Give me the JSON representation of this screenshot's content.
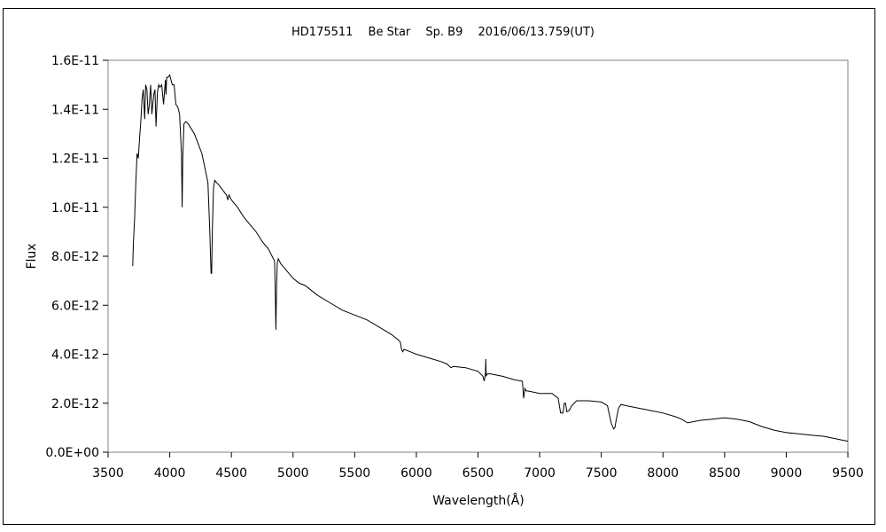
{
  "chart_data": {
    "type": "line",
    "title": "HD175511　 Be Star　 Sp. B9　 2016/06/13.759(UT)",
    "xlabel": "Wavelength(Å)",
    "ylabel": "Flux",
    "xlim": [
      3500,
      9500
    ],
    "ylim": [
      0,
      1.6e-11
    ],
    "x_ticks": [
      3500,
      4000,
      4500,
      5000,
      5500,
      6000,
      6500,
      7000,
      7500,
      8000,
      8500,
      9000,
      9500
    ],
    "x_tick_labels": [
      "3500",
      "4000",
      "4500",
      "5000",
      "5500",
      "6000",
      "6500",
      "7000",
      "7500",
      "8000",
      "8500",
      "9000",
      "9500"
    ],
    "y_ticks": [
      0,
      2e-12,
      4e-12,
      6e-12,
      8e-12,
      1e-11,
      1.2e-11,
      1.4e-11,
      1.6e-11
    ],
    "y_tick_labels": [
      "0.0E+00",
      "2.0E-12",
      "4.0E-12",
      "6.0E-12",
      "8.0E-12",
      "1.0E-11",
      "1.2E-11",
      "1.4E-11",
      "1.6E-11"
    ],
    "grid": false,
    "line_color": "#000000",
    "series": [
      {
        "x": [
          3700,
          3705,
          3715,
          3725,
          3735,
          3745,
          3755,
          3765,
          3775,
          3785,
          3797,
          3805,
          3815,
          3825,
          3835,
          3845,
          3855,
          3870,
          3880,
          3889,
          3900,
          3910,
          3920,
          3935,
          3950,
          3965,
          3970,
          3975,
          3985,
          4000,
          4010,
          4020,
          4035,
          4050,
          4065,
          4080,
          4095,
          4101,
          4106,
          4115,
          4130,
          4150,
          4175,
          4200,
          4230,
          4260,
          4290,
          4310,
          4325,
          4335,
          4340,
          4345,
          4355,
          4365,
          4380,
          4400,
          4430,
          4460,
          4471,
          4480,
          4500,
          4550,
          4600,
          4650,
          4700,
          4750,
          4800,
          4830,
          4850,
          4856,
          4861,
          4866,
          4872,
          4880,
          4900,
          4950,
          5000,
          5050,
          5100,
          5150,
          5200,
          5300,
          5400,
          5500,
          5600,
          5700,
          5800,
          5850,
          5870,
          5880,
          5890,
          5900,
          5950,
          6000,
          6100,
          6200,
          6250,
          6280,
          6300,
          6400,
          6500,
          6540,
          6550,
          6560,
          6563,
          6566,
          6575,
          6600,
          6700,
          6800,
          6860,
          6870,
          6880,
          6890,
          6900,
          6950,
          7000,
          7100,
          7150,
          7170,
          7190,
          7200,
          7210,
          7220,
          7240,
          7260,
          7300,
          7400,
          7500,
          7550,
          7580,
          7600,
          7610,
          7620,
          7640,
          7660,
          7700,
          7800,
          7900,
          8000,
          8100,
          8150,
          8200,
          8300,
          8400,
          8500,
          8600,
          8700,
          8800,
          8900,
          9000,
          9100,
          9200,
          9300,
          9350,
          9400,
          9450,
          9500
        ],
        "y": [
          7.6e-12,
          8.5e-12,
          9.5e-12,
          1.1e-11,
          1.22e-11,
          1.2e-11,
          1.28e-11,
          1.35e-11,
          1.44e-11,
          1.48e-11,
          1.36e-11,
          1.5e-11,
          1.48e-11,
          1.38e-11,
          1.42e-11,
          1.5e-11,
          1.38e-11,
          1.46e-11,
          1.48e-11,
          1.33e-11,
          1.47e-11,
          1.5e-11,
          1.49e-11,
          1.5e-11,
          1.42e-11,
          1.52e-11,
          1.46e-11,
          1.53e-11,
          1.53e-11,
          1.54e-11,
          1.52e-11,
          1.5e-11,
          1.5e-11,
          1.42e-11,
          1.41e-11,
          1.38e-11,
          1.22e-11,
          1e-11,
          1.2e-11,
          1.34e-11,
          1.35e-11,
          1.34e-11,
          1.32e-11,
          1.3e-11,
          1.26e-11,
          1.22e-11,
          1.15e-11,
          1.1e-11,
          9e-12,
          7.3e-12,
          7.3e-12,
          9e-12,
          1.08e-11,
          1.11e-11,
          1.1e-11,
          1.09e-11,
          1.07e-11,
          1.05e-11,
          1.03e-11,
          1.05e-11,
          1.03e-11,
          1e-11,
          9.6e-12,
          9.3e-12,
          9e-12,
          8.6e-12,
          8.3e-12,
          8e-12,
          7.8e-12,
          6.5e-12,
          5e-12,
          6.6e-12,
          7.7e-12,
          7.9e-12,
          7.7e-12,
          7.4e-12,
          7.1e-12,
          6.9e-12,
          6.8e-12,
          6.6e-12,
          6.4e-12,
          6.1e-12,
          5.8e-12,
          5.6e-12,
          5.4e-12,
          5.1e-12,
          4.8e-12,
          4.6e-12,
          4.5e-12,
          4.2e-12,
          4.1e-12,
          4.2e-12,
          4.1e-12,
          4e-12,
          3.85e-12,
          3.7e-12,
          3.6e-12,
          3.45e-12,
          3.5e-12,
          3.45e-12,
          3.3e-12,
          3.1e-12,
          2.9e-12,
          3.2e-12,
          3.8e-12,
          3.1e-12,
          3.2e-12,
          3.2e-12,
          3.1e-12,
          2.95e-12,
          2.9e-12,
          2.2e-12,
          2.6e-12,
          2.5e-12,
          2.5e-12,
          2.45e-12,
          2.4e-12,
          2.4e-12,
          2.2e-12,
          1.6e-12,
          1.6e-12,
          2e-12,
          2e-12,
          1.65e-12,
          1.7e-12,
          1.9e-12,
          2.1e-12,
          2.1e-12,
          2.05e-12,
          1.9e-12,
          1.2e-12,
          9.5e-13,
          1e-12,
          1.3e-12,
          1.8e-12,
          1.95e-12,
          1.9e-12,
          1.8e-12,
          1.7e-12,
          1.6e-12,
          1.45e-12,
          1.35e-12,
          1.2e-12,
          1.3e-12,
          1.35e-12,
          1.4e-12,
          1.35e-12,
          1.25e-12,
          1.05e-12,
          9e-13,
          8e-13,
          7.5e-13,
          7e-13,
          6.5e-13,
          6e-13,
          5.5e-13,
          5e-13,
          4.5e-13
        ]
      }
    ]
  }
}
